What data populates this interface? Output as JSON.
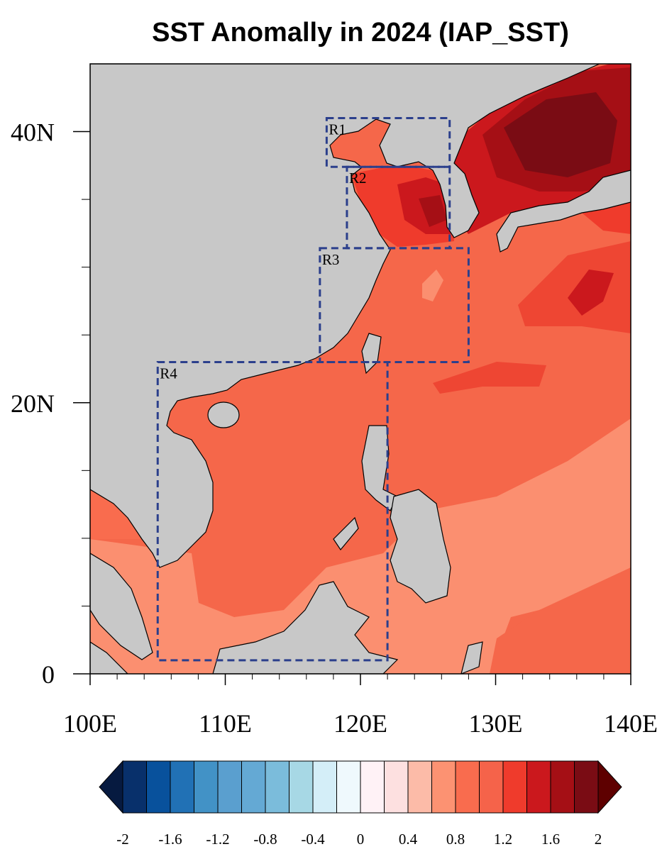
{
  "chart_data": {
    "type": "map",
    "title": "SST Anomally in 2024 (IAP_SST)",
    "xlim": [
      100,
      140
    ],
    "ylim": [
      0,
      45
    ],
    "xticks": [
      {
        "value": 100,
        "label": "100E"
      },
      {
        "value": 110,
        "label": "110E"
      },
      {
        "value": 120,
        "label": "120E"
      },
      {
        "value": 130,
        "label": "130E"
      },
      {
        "value": 140,
        "label": "140E"
      }
    ],
    "yticks": [
      0,
      {
        "value": 20,
        "label": "20N"
      },
      {
        "value": 40,
        "label": "40N"
      }
    ],
    "regions": [
      {
        "name": "R1",
        "lon": [
          117.5,
          126.6
        ],
        "lat": [
          37.4,
          41
        ]
      },
      {
        "name": "R2",
        "lon": [
          119,
          126.6
        ],
        "lat": [
          31.4,
          37.4
        ]
      },
      {
        "name": "R3",
        "lon": [
          117,
          128
        ],
        "lat": [
          23,
          31.4
        ]
      },
      {
        "name": "R4",
        "lon": [
          105,
          122
        ],
        "lat": [
          1,
          23
        ]
      }
    ],
    "region_color": "#2b3f8c",
    "colorbar": {
      "levels": [
        -2,
        -1.8,
        -1.6,
        -1.4,
        -1.2,
        -1,
        -0.8,
        -0.6,
        -0.4,
        -0.2,
        0,
        0.2,
        0.4,
        0.6,
        0.8,
        1,
        1.2,
        1.4,
        1.6,
        1.8,
        2
      ],
      "ticks": [
        -2,
        -1.6,
        -1.2,
        -0.8,
        -0.4,
        0,
        0.4,
        0.8,
        1.2,
        1.6,
        2
      ],
      "colors": [
        "#061a40",
        "#08306b",
        "#08519c",
        "#2171b5",
        "#4292c6",
        "#5a9fcf",
        "#64a9d4",
        "#7bbcdb",
        "#a7d8e5",
        "#d4eef8",
        "#eff9fd",
        "#fff2f6",
        "#fde0e0",
        "#fcbba8",
        "#fc9272",
        "#f96c4e",
        "#f5634a",
        "#ef3b2c",
        "#cb181d",
        "#a50f15",
        "#7a0c14",
        "#5e0000"
      ]
    }
  }
}
